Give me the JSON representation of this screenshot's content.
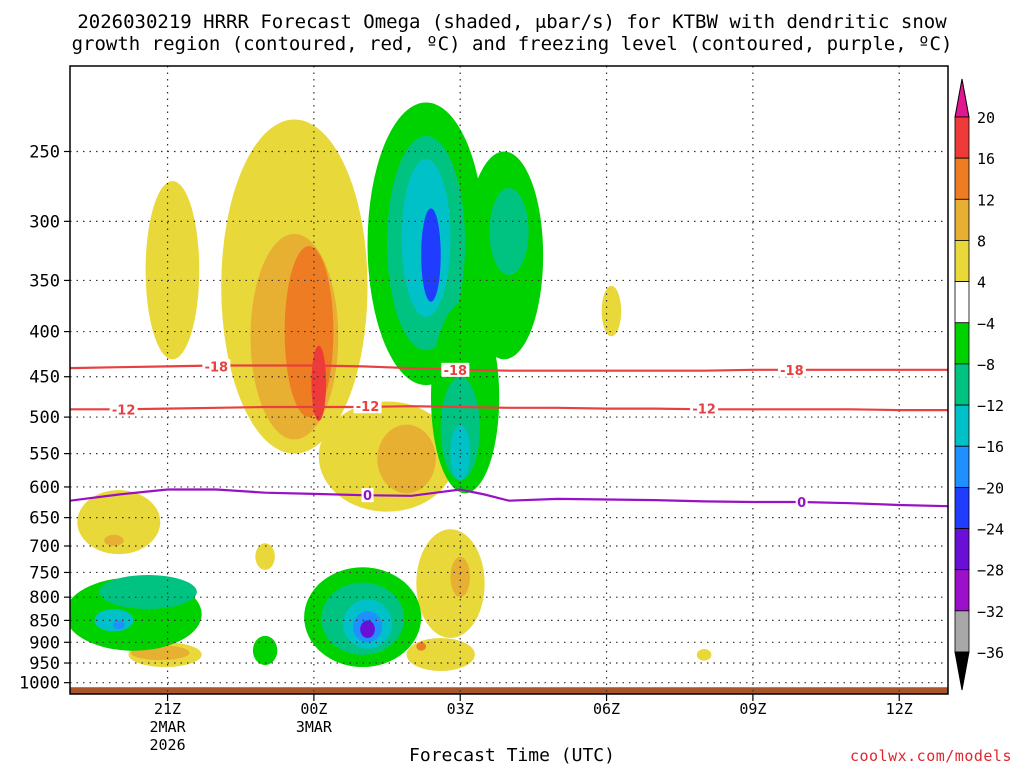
{
  "title_line1": "2026030219 HRRR Forecast Omega (shaded, μbar/s) for KTBW with dendritic snow",
  "title_line2": "growth region (contoured, red, ºC) and freezing level (contoured, purple, ºC)",
  "xlabel": "Forecast Time (UTC)",
  "credit": "coolwx.com/models",
  "chart_data": {
    "type": "heatmap",
    "title": "2026030219 HRRR Forecast Omega (shaded, μbar/s) for KTBW with dendritic snow growth region (contoured, red, ºC) and freezing level (contoured, purple, ºC)",
    "xlabel": "Forecast Time (UTC)",
    "ylabel": "",
    "y_scale": "log-pressure (hPa), inverted",
    "ylim": [
      1030,
      200
    ],
    "grid": true,
    "x_ticks": [
      {
        "label": "21Z",
        "sub": [
          "2MAR",
          "2026"
        ],
        "hour": 2
      },
      {
        "label": "00Z",
        "sub": [
          "3MAR"
        ],
        "hour": 5
      },
      {
        "label": "03Z",
        "sub": [],
        "hour": 8
      },
      {
        "label": "06Z",
        "sub": [],
        "hour": 11
      },
      {
        "label": "09Z",
        "sub": [],
        "hour": 14
      },
      {
        "label": "12Z",
        "sub": [],
        "hour": 17
      }
    ],
    "xlim": [
      0,
      18
    ],
    "y_ticks": [
      250,
      300,
      350,
      400,
      450,
      500,
      550,
      600,
      650,
      700,
      750,
      800,
      850,
      900,
      950,
      1000
    ],
    "colorbar": {
      "labels": [
        "20",
        "16",
        "12",
        "8",
        "4",
        "−4",
        "−8",
        "−12",
        "−16",
        "−20",
        "−24",
        "−28",
        "−32",
        "−36"
      ],
      "levels": [
        20,
        16,
        12,
        8,
        4,
        -4,
        -8,
        -12,
        -16,
        -20,
        -24,
        -28,
        -32,
        -36
      ],
      "colors": [
        "#ef3a3a",
        "#ee7c22",
        "#e7b033",
        "#e9d83a",
        "#ffffff",
        "#00d200",
        "#00c382",
        "#00c1c8",
        "#1e90ff",
        "#1f3cff",
        "#6a0fd6",
        "#9b10c8",
        "#a8a8a8"
      ],
      "over_color": "#e2168f",
      "under_color": "#000000"
    },
    "contours": [
      {
        "name": "dendritic snow growth −18 ºC",
        "color": "#e84040",
        "value": -18,
        "points": [
          [
            0,
            440
          ],
          [
            1,
            439
          ],
          [
            2,
            438
          ],
          [
            3,
            437
          ],
          [
            4,
            437
          ],
          [
            5,
            437
          ],
          [
            6,
            438
          ],
          [
            7,
            440
          ],
          [
            8,
            442
          ],
          [
            9,
            443
          ],
          [
            10,
            443
          ],
          [
            11,
            443
          ],
          [
            12,
            443
          ],
          [
            13,
            443
          ],
          [
            14,
            442
          ],
          [
            15,
            442
          ],
          [
            16,
            442
          ],
          [
            17,
            442
          ],
          [
            18,
            442
          ]
        ],
        "labels": [
          [
            3,
            438
          ],
          [
            7.9,
            442
          ],
          [
            14.8,
            442
          ]
        ]
      },
      {
        "name": "dendritic snow growth −12 ºC",
        "color": "#e84040",
        "value": -12,
        "points": [
          [
            0,
            490
          ],
          [
            1,
            490
          ],
          [
            2,
            489
          ],
          [
            3,
            488
          ],
          [
            4,
            487
          ],
          [
            5,
            487
          ],
          [
            6,
            487
          ],
          [
            7,
            486
          ],
          [
            8,
            487
          ],
          [
            9,
            488
          ],
          [
            10,
            488
          ],
          [
            11,
            489
          ],
          [
            12,
            489
          ],
          [
            13,
            490
          ],
          [
            14,
            490
          ],
          [
            15,
            490
          ],
          [
            16,
            490
          ],
          [
            17,
            491
          ],
          [
            18,
            491
          ]
        ],
        "labels": [
          [
            1.1,
            490
          ],
          [
            6.1,
            486
          ],
          [
            13,
            489
          ]
        ]
      },
      {
        "name": "freezing level 0 ºC",
        "color": "#9a10c4",
        "value": 0,
        "points": [
          [
            0,
            622
          ],
          [
            1,
            612
          ],
          [
            2,
            604
          ],
          [
            3,
            604
          ],
          [
            4,
            609
          ],
          [
            5,
            611
          ],
          [
            6,
            613
          ],
          [
            7,
            614
          ],
          [
            7.5,
            609
          ],
          [
            8,
            604
          ],
          [
            8.5,
            612
          ],
          [
            9,
            622
          ],
          [
            10,
            619
          ],
          [
            11,
            620
          ],
          [
            12,
            621
          ],
          [
            13,
            623
          ],
          [
            14,
            624
          ],
          [
            15,
            624
          ],
          [
            16,
            626
          ],
          [
            17,
            629
          ],
          [
            18,
            631
          ]
        ],
        "labels": [
          [
            6.1,
            613
          ],
          [
            15,
            624
          ]
        ]
      }
    ],
    "omega_features": [
      {
        "cx": 2.1,
        "cy": 350,
        "rx": 0.55,
        "ry": 80,
        "value": 6
      },
      {
        "cx": 1.0,
        "cy": 660,
        "rx": 0.85,
        "ry": 55,
        "value": 6
      },
      {
        "cx": 0.9,
        "cy": 690,
        "rx": 0.2,
        "ry": 10,
        "value": 9
      },
      {
        "cx": 1.95,
        "cy": 930,
        "rx": 0.75,
        "ry": 30,
        "value": 6
      },
      {
        "cx": 1.85,
        "cy": 925,
        "rx": 0.6,
        "ry": 18,
        "value": 9
      },
      {
        "cx": 4.6,
        "cy": 390,
        "rx": 1.5,
        "ry": 160,
        "value": 6
      },
      {
        "cx": 4.6,
        "cy": 420,
        "rx": 0.9,
        "ry": 110,
        "value": 9
      },
      {
        "cx": 4.9,
        "cy": 410,
        "rx": 0.5,
        "ry": 90,
        "value": 13
      },
      {
        "cx": 5.1,
        "cy": 460,
        "rx": 0.15,
        "ry": 45,
        "value": 17
      },
      {
        "cx": 6.5,
        "cy": 560,
        "rx": 1.4,
        "ry": 80,
        "value": 6
      },
      {
        "cx": 6.9,
        "cy": 560,
        "rx": 0.6,
        "ry": 50,
        "value": 9
      },
      {
        "cx": 7.8,
        "cy": 780,
        "rx": 0.7,
        "ry": 110,
        "value": 6
      },
      {
        "cx": 8.0,
        "cy": 760,
        "rx": 0.2,
        "ry": 40,
        "value": 9
      },
      {
        "cx": 7.6,
        "cy": 930,
        "rx": 0.7,
        "ry": 40,
        "value": 6
      },
      {
        "cx": 7.2,
        "cy": 910,
        "rx": 0.1,
        "ry": 10,
        "value": 13
      },
      {
        "cx": 4.0,
        "cy": 720,
        "rx": 0.2,
        "ry": 25,
        "value": 6
      },
      {
        "cx": 11.1,
        "cy": 380,
        "rx": 0.2,
        "ry": 25,
        "value": 6
      },
      {
        "cx": 13.0,
        "cy": 930,
        "rx": 0.15,
        "ry": 14,
        "value": 6
      },
      {
        "cx": 7.3,
        "cy": 340,
        "rx": 1.2,
        "ry": 120,
        "value": -6
      },
      {
        "cx": 7.3,
        "cy": 330,
        "rx": 0.8,
        "ry": 90,
        "value": -10
      },
      {
        "cx": 7.3,
        "cy": 320,
        "rx": 0.5,
        "ry": 65,
        "value": -14
      },
      {
        "cx": 7.4,
        "cy": 330,
        "rx": 0.2,
        "ry": 40,
        "value": -22
      },
      {
        "cx": 8.9,
        "cy": 340,
        "rx": 0.8,
        "ry": 90,
        "value": -6
      },
      {
        "cx": 9.0,
        "cy": 310,
        "rx": 0.4,
        "ry": 35,
        "value": -10
      },
      {
        "cx": 8.1,
        "cy": 490,
        "rx": 0.7,
        "ry": 120,
        "value": -6
      },
      {
        "cx": 8.0,
        "cy": 520,
        "rx": 0.4,
        "ry": 70,
        "value": -10
      },
      {
        "cx": 8.0,
        "cy": 550,
        "rx": 0.2,
        "ry": 40,
        "value": -14
      },
      {
        "cx": 1.3,
        "cy": 840,
        "rx": 1.4,
        "ry": 80,
        "value": -6
      },
      {
        "cx": 1.6,
        "cy": 790,
        "rx": 1.0,
        "ry": 35,
        "value": -10
      },
      {
        "cx": 0.9,
        "cy": 850,
        "rx": 0.4,
        "ry": 25,
        "value": -14
      },
      {
        "cx": 1.0,
        "cy": 860,
        "rx": 0.12,
        "ry": 10,
        "value": -18
      },
      {
        "cx": 4.0,
        "cy": 920,
        "rx": 0.25,
        "ry": 35,
        "value": -6
      },
      {
        "cx": 6.0,
        "cy": 850,
        "rx": 1.2,
        "ry": 110,
        "value": -6
      },
      {
        "cx": 6.0,
        "cy": 850,
        "rx": 0.85,
        "ry": 80,
        "value": -10
      },
      {
        "cx": 6.1,
        "cy": 860,
        "rx": 0.5,
        "ry": 55,
        "value": -14
      },
      {
        "cx": 6.1,
        "cy": 865,
        "rx": 0.3,
        "ry": 35,
        "value": -18
      },
      {
        "cx": 6.1,
        "cy": 870,
        "rx": 0.15,
        "ry": 20,
        "value": -26
      }
    ],
    "ground": {
      "color": "#a8552a",
      "from_hPa": 1030,
      "to_hPa": 1012
    }
  }
}
